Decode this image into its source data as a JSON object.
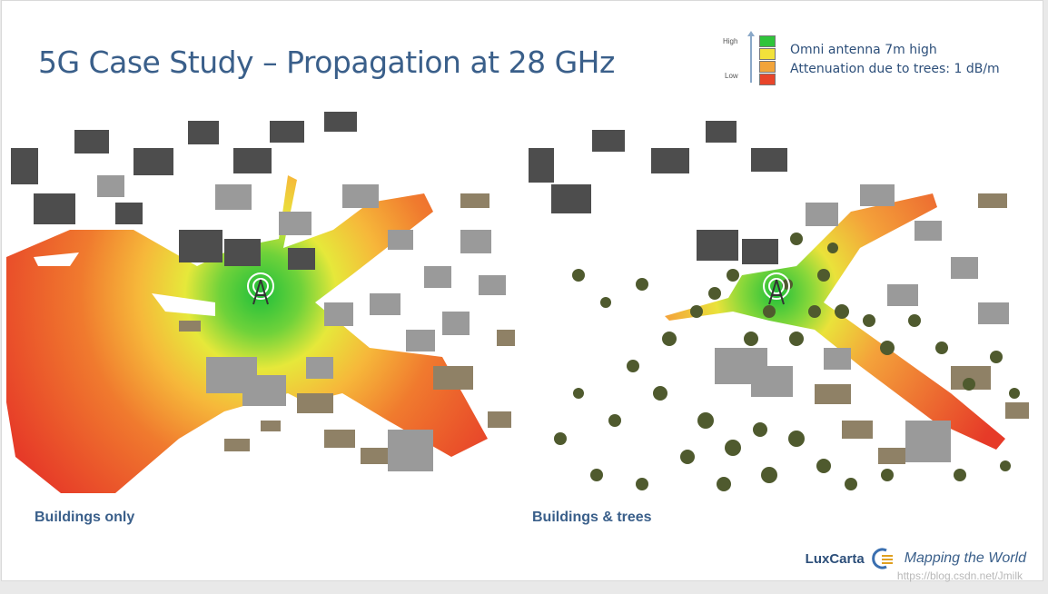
{
  "slide": {
    "title": "5G Case Study – Propagation at 28 GHz",
    "legend": {
      "high_label": "High",
      "low_label": "Low",
      "colors": [
        "#2fc43a",
        "#f2e23a",
        "#f2a43a",
        "#e8452a"
      ],
      "entries": [
        "Omni antenna 7m high",
        "Attenuation due to trees: 1 dB/m"
      ]
    },
    "panels": [
      {
        "caption": "Buildings only",
        "icon": "antenna-tower-icon"
      },
      {
        "caption": "Buildings & trees",
        "icon": "antenna-tower-icon"
      }
    ],
    "brand": {
      "name": "LuxCarta",
      "tagline": "Mapping the World",
      "icon": "luxcarta-logo-icon"
    },
    "watermark": "https://blog.csdn.net/Jmilk"
  }
}
